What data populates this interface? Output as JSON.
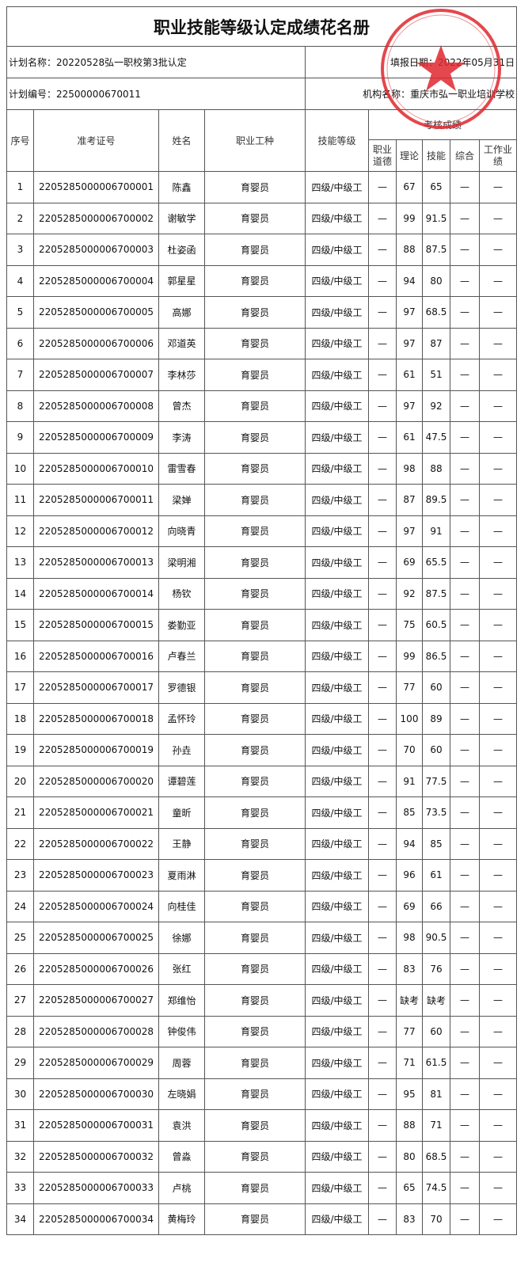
{
  "title": "职业技能等级认定成绩花名册",
  "plan_name": "计划名称：20220528弘一职校第3批认定",
  "report_date": "填报日期：2022年05月31日",
  "plan_no": "计划编号：22500000670011",
  "org_name": "机构名称：重庆市弘一职业培训学校",
  "headers": {
    "seq": "序号",
    "exam_no": "准考证号",
    "name": "姓名",
    "occupation": "职业工种",
    "level": "技能等级",
    "scores": "考核成绩",
    "ethics": "职业道德",
    "theory": "理论",
    "skill": "技能",
    "overall": "综合",
    "performance": "工作业绩"
  },
  "seal": {
    "text": "重庆市弘一职业培训学校",
    "code": "5001068189188",
    "color": "#e0282e"
  },
  "rows": [
    [
      "1",
      "2205285000006700001",
      "陈鑫",
      "育婴员",
      "四级/中级工",
      "—",
      "67",
      "65",
      "—",
      "—"
    ],
    [
      "2",
      "2205285000006700002",
      "谢敏学",
      "育婴员",
      "四级/中级工",
      "—",
      "99",
      "91.5",
      "—",
      "—"
    ],
    [
      "3",
      "2205285000006700003",
      "杜姿函",
      "育婴员",
      "四级/中级工",
      "—",
      "88",
      "87.5",
      "—",
      "—"
    ],
    [
      "4",
      "2205285000006700004",
      "郭星星",
      "育婴员",
      "四级/中级工",
      "—",
      "94",
      "80",
      "—",
      "—"
    ],
    [
      "5",
      "2205285000006700005",
      "高娜",
      "育婴员",
      "四级/中级工",
      "—",
      "97",
      "68.5",
      "—",
      "—"
    ],
    [
      "6",
      "2205285000006700006",
      "邓道英",
      "育婴员",
      "四级/中级工",
      "—",
      "97",
      "87",
      "—",
      "—"
    ],
    [
      "7",
      "2205285000006700007",
      "李林莎",
      "育婴员",
      "四级/中级工",
      "—",
      "61",
      "51",
      "—",
      "—"
    ],
    [
      "8",
      "2205285000006700008",
      "曾杰",
      "育婴员",
      "四级/中级工",
      "—",
      "97",
      "92",
      "—",
      "—"
    ],
    [
      "9",
      "2205285000006700009",
      "李涛",
      "育婴员",
      "四级/中级工",
      "—",
      "61",
      "47.5",
      "—",
      "—"
    ],
    [
      "10",
      "2205285000006700010",
      "雷雪春",
      "育婴员",
      "四级/中级工",
      "—",
      "98",
      "88",
      "—",
      "—"
    ],
    [
      "11",
      "2205285000006700011",
      "梁婵",
      "育婴员",
      "四级/中级工",
      "—",
      "87",
      "89.5",
      "—",
      "—"
    ],
    [
      "12",
      "2205285000006700012",
      "向晓青",
      "育婴员",
      "四级/中级工",
      "—",
      "97",
      "91",
      "—",
      "—"
    ],
    [
      "13",
      "2205285000006700013",
      "梁明湘",
      "育婴员",
      "四级/中级工",
      "—",
      "69",
      "65.5",
      "—",
      "—"
    ],
    [
      "14",
      "2205285000006700014",
      "杨钦",
      "育婴员",
      "四级/中级工",
      "—",
      "92",
      "87.5",
      "—",
      "—"
    ],
    [
      "15",
      "2205285000006700015",
      "娄勤亚",
      "育婴员",
      "四级/中级工",
      "—",
      "75",
      "60.5",
      "—",
      "—"
    ],
    [
      "16",
      "2205285000006700016",
      "卢春兰",
      "育婴员",
      "四级/中级工",
      "—",
      "99",
      "86.5",
      "—",
      "—"
    ],
    [
      "17",
      "2205285000006700017",
      "罗德银",
      "育婴员",
      "四级/中级工",
      "—",
      "77",
      "60",
      "—",
      "—"
    ],
    [
      "18",
      "2205285000006700018",
      "孟怀玲",
      "育婴员",
      "四级/中级工",
      "—",
      "100",
      "89",
      "—",
      "—"
    ],
    [
      "19",
      "2205285000006700019",
      "孙垚",
      "育婴员",
      "四级/中级工",
      "—",
      "70",
      "60",
      "—",
      "—"
    ],
    [
      "20",
      "2205285000006700020",
      "谭碧莲",
      "育婴员",
      "四级/中级工",
      "—",
      "91",
      "77.5",
      "—",
      "—"
    ],
    [
      "21",
      "2205285000006700021",
      "童昕",
      "育婴员",
      "四级/中级工",
      "—",
      "85",
      "73.5",
      "—",
      "—"
    ],
    [
      "22",
      "2205285000006700022",
      "王静",
      "育婴员",
      "四级/中级工",
      "—",
      "94",
      "85",
      "—",
      "—"
    ],
    [
      "23",
      "2205285000006700023",
      "夏雨淋",
      "育婴员",
      "四级/中级工",
      "—",
      "96",
      "61",
      "—",
      "—"
    ],
    [
      "24",
      "2205285000006700024",
      "向桂佳",
      "育婴员",
      "四级/中级工",
      "—",
      "69",
      "66",
      "—",
      "—"
    ],
    [
      "25",
      "2205285000006700025",
      "徐娜",
      "育婴员",
      "四级/中级工",
      "—",
      "98",
      "90.5",
      "—",
      "—"
    ],
    [
      "26",
      "2205285000006700026",
      "张红",
      "育婴员",
      "四级/中级工",
      "—",
      "83",
      "76",
      "—",
      "—"
    ],
    [
      "27",
      "2205285000006700027",
      "郑维怡",
      "育婴员",
      "四级/中级工",
      "—",
      "缺考",
      "缺考",
      "—",
      "—"
    ],
    [
      "28",
      "2205285000006700028",
      "钟俊伟",
      "育婴员",
      "四级/中级工",
      "—",
      "77",
      "60",
      "—",
      "—"
    ],
    [
      "29",
      "2205285000006700029",
      "周蓉",
      "育婴员",
      "四级/中级工",
      "—",
      "71",
      "61.5",
      "—",
      "—"
    ],
    [
      "30",
      "2205285000006700030",
      "左晓娟",
      "育婴员",
      "四级/中级工",
      "—",
      "95",
      "81",
      "—",
      "—"
    ],
    [
      "31",
      "2205285000006700031",
      "袁洪",
      "育婴员",
      "四级/中级工",
      "—",
      "88",
      "71",
      "—",
      "—"
    ],
    [
      "32",
      "2205285000006700032",
      "曾淼",
      "育婴员",
      "四级/中级工",
      "—",
      "80",
      "68.5",
      "—",
      "—"
    ],
    [
      "33",
      "2205285000006700033",
      "卢桃",
      "育婴员",
      "四级/中级工",
      "—",
      "65",
      "74.5",
      "—",
      "—"
    ],
    [
      "34",
      "2205285000006700034",
      "黄梅玲",
      "育婴员",
      "四级/中级工",
      "—",
      "83",
      "70",
      "—",
      "—"
    ]
  ]
}
